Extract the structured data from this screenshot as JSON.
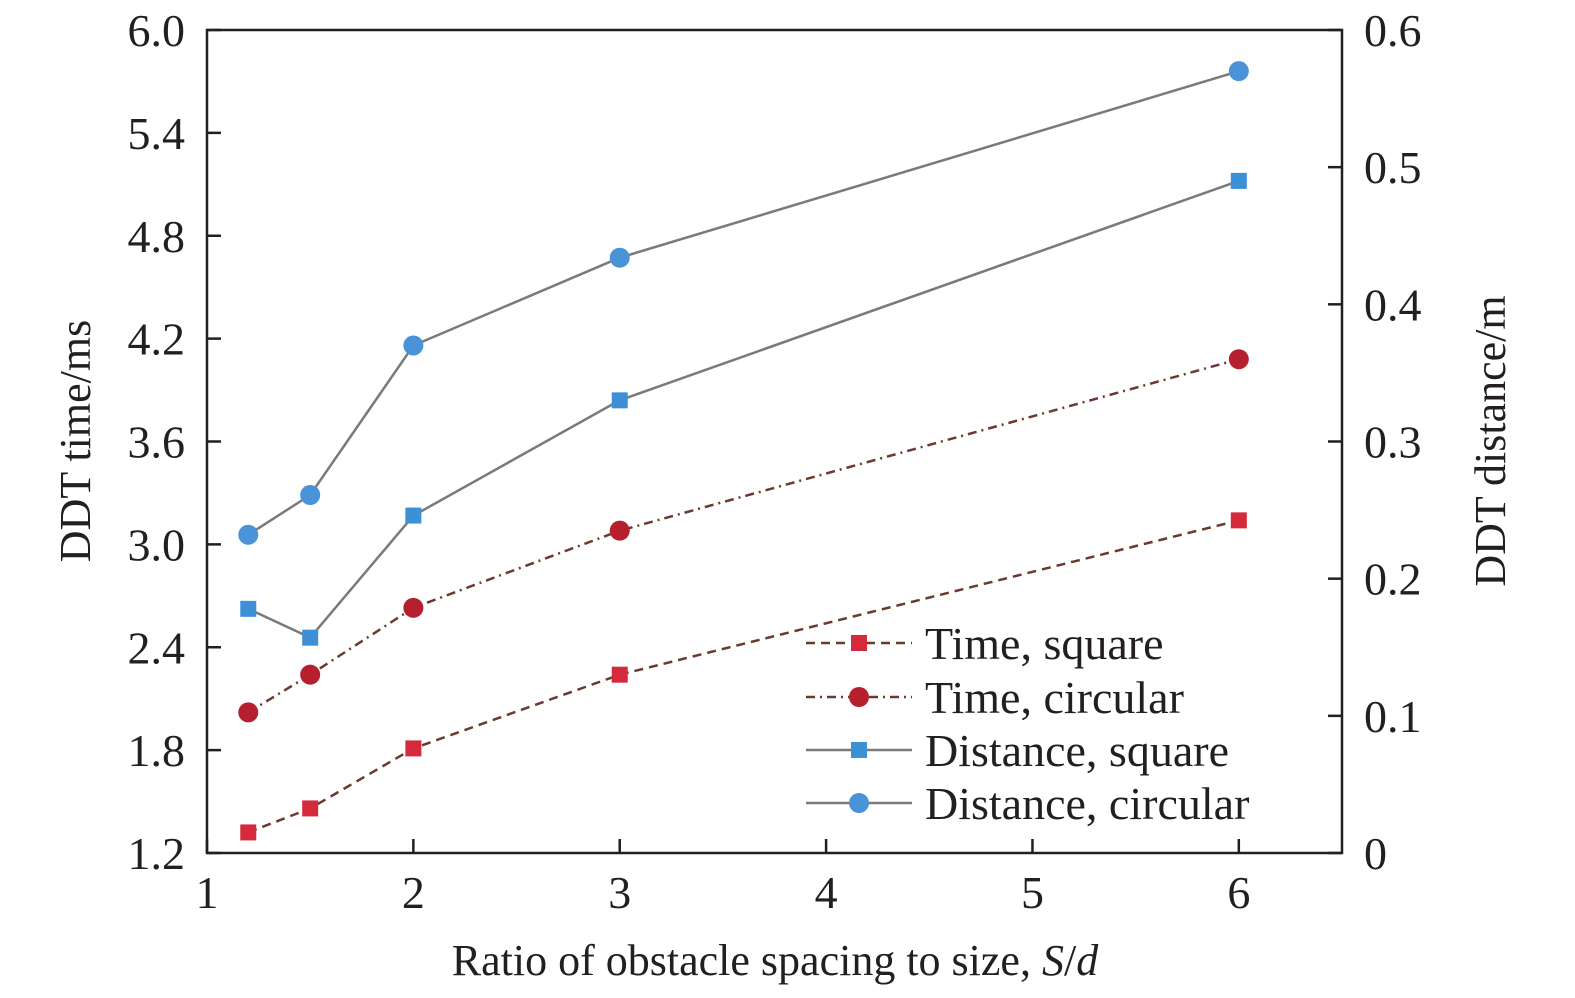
{
  "chart_data": {
    "type": "line",
    "title": "",
    "xlabel": "Ratio of obstacle spacing to size, ",
    "xlabel_italic": "S",
    "xlabel_sep": "/",
    "xlabel_italic2": "d",
    "ylabel_left": "DDT time/ms",
    "ylabel_right": "DDT distance/m",
    "xlim": [
      1,
      6.5
    ],
    "ylim_left": [
      1.2,
      6.0
    ],
    "ylim_right": [
      0,
      0.6
    ],
    "xticks": [
      1,
      2,
      3,
      4,
      5,
      6
    ],
    "xtick_labels": [
      "1",
      "2",
      "3",
      "4",
      "5",
      "6"
    ],
    "yticks_left": [
      1.2,
      1.8,
      2.4,
      3.0,
      3.6,
      4.2,
      4.8,
      5.4,
      6.0
    ],
    "ytick_labels_left": [
      "1.2",
      "1.8",
      "2.4",
      "3.0",
      "3.6",
      "4.2",
      "4.8",
      "5.4",
      "6.0"
    ],
    "yticks_right": [
      0,
      0.1,
      0.2,
      0.3,
      0.4,
      0.5,
      0.6
    ],
    "ytick_labels_right": [
      "0",
      "0.1",
      "0.2",
      "0.3",
      "0.4",
      "0.5",
      "0.6"
    ],
    "grid": false,
    "legend_position": "bottom-right",
    "x": [
      1.2,
      1.5,
      2,
      3,
      6
    ],
    "series": [
      {
        "name": "Time, square",
        "axis": "left",
        "marker": "square",
        "line": "dashed",
        "line_color": "#6b3a2e",
        "marker_color": "#d42a3c",
        "values": [
          1.32,
          1.46,
          1.81,
          2.24,
          3.14
        ]
      },
      {
        "name": "Time, circular",
        "axis": "left",
        "marker": "circle",
        "line": "dashdot",
        "line_color": "#6b3a2e",
        "marker_color": "#b51f2e",
        "values": [
          2.02,
          2.24,
          2.63,
          3.08,
          4.08
        ]
      },
      {
        "name": "Distance, square",
        "axis": "right",
        "marker": "square",
        "line": "solid",
        "line_color": "#7a7a7a",
        "marker_color": "#3d8fd6",
        "values": [
          0.178,
          0.157,
          0.246,
          0.33,
          0.49
        ]
      },
      {
        "name": "Distance, circular",
        "axis": "right",
        "marker": "circle",
        "line": "solid",
        "line_color": "#7a7a7a",
        "marker_color": "#4a93d8",
        "values": [
          0.232,
          0.261,
          0.37,
          0.434,
          0.57
        ]
      }
    ]
  }
}
